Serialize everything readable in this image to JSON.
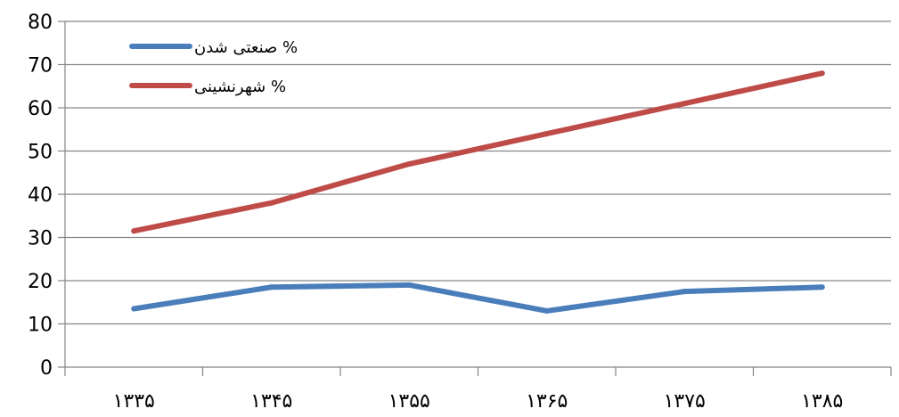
{
  "chart_data": {
    "type": "line",
    "title": "",
    "xlabel": "",
    "ylabel": "",
    "categories": [
      "۱۳۳۵",
      "۱۳۴۵",
      "۱۳۵۵",
      "۱۳۶۵",
      "۱۳۷۵",
      "۱۳۸۵"
    ],
    "ylim": [
      0,
      80
    ],
    "yticks": [
      0,
      10,
      20,
      30,
      40,
      50,
      60,
      70,
      80
    ],
    "ytick_labels": [
      "0",
      "10",
      "20",
      "30",
      "40",
      "50",
      "60",
      "70",
      "80"
    ],
    "grid": true,
    "legend_position": "top-left",
    "series": [
      {
        "name": "% صنعتی شدن",
        "color": "#4a7ebb",
        "values": [
          13.5,
          18.5,
          19,
          13,
          17.5,
          18.5
        ]
      },
      {
        "name": "% شهرنشینی",
        "color": "#be4b48",
        "values": [
          31.5,
          38,
          47,
          54,
          61,
          68
        ]
      }
    ]
  }
}
